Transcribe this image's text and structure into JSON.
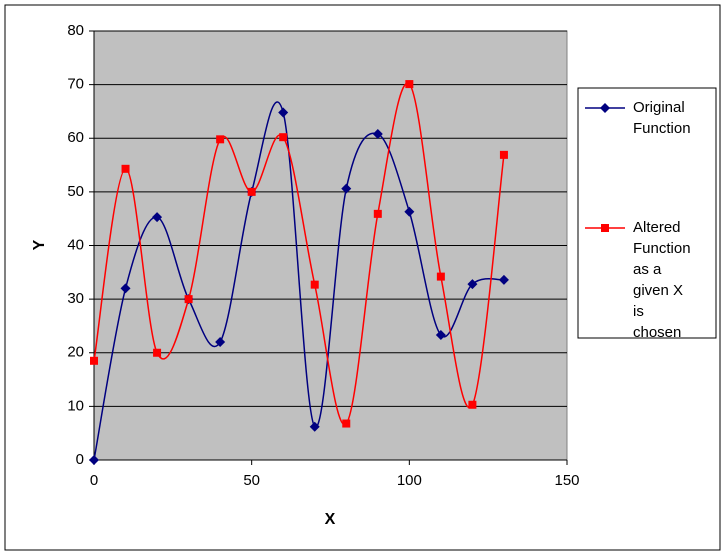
{
  "chart_data": {
    "type": "scatter",
    "x_label": "X",
    "y_label": "Y",
    "xlim": [
      0,
      150
    ],
    "xticks": [
      0,
      50,
      100,
      150
    ],
    "ylim": [
      0,
      80
    ],
    "yticks": [
      0,
      10,
      20,
      30,
      40,
      50,
      60,
      70,
      80
    ],
    "grid": true,
    "legend": "right",
    "series": [
      {
        "name": "Original Function",
        "color": "#000080",
        "marker": "diamond",
        "x": [
          0,
          10,
          20,
          30,
          40,
          50,
          60,
          70,
          80,
          90,
          100,
          110,
          120,
          130
        ],
        "values": [
          0,
          32,
          45.3,
          30,
          22,
          50,
          64.8,
          6.2,
          50.6,
          60.8,
          46.3,
          23.3,
          32.8,
          33.6
        ]
      },
      {
        "name": "Altered Function as a given X is chosen",
        "color": "#ff0000",
        "marker": "square",
        "x": [
          0,
          10,
          20,
          30,
          40,
          50,
          60,
          70,
          80,
          90,
          100,
          110,
          120,
          130
        ],
        "values": [
          18.5,
          54.3,
          20,
          30,
          59.8,
          50,
          60.2,
          32.7,
          6.8,
          45.9,
          70.1,
          34.2,
          10.3,
          56.9
        ]
      }
    ]
  }
}
